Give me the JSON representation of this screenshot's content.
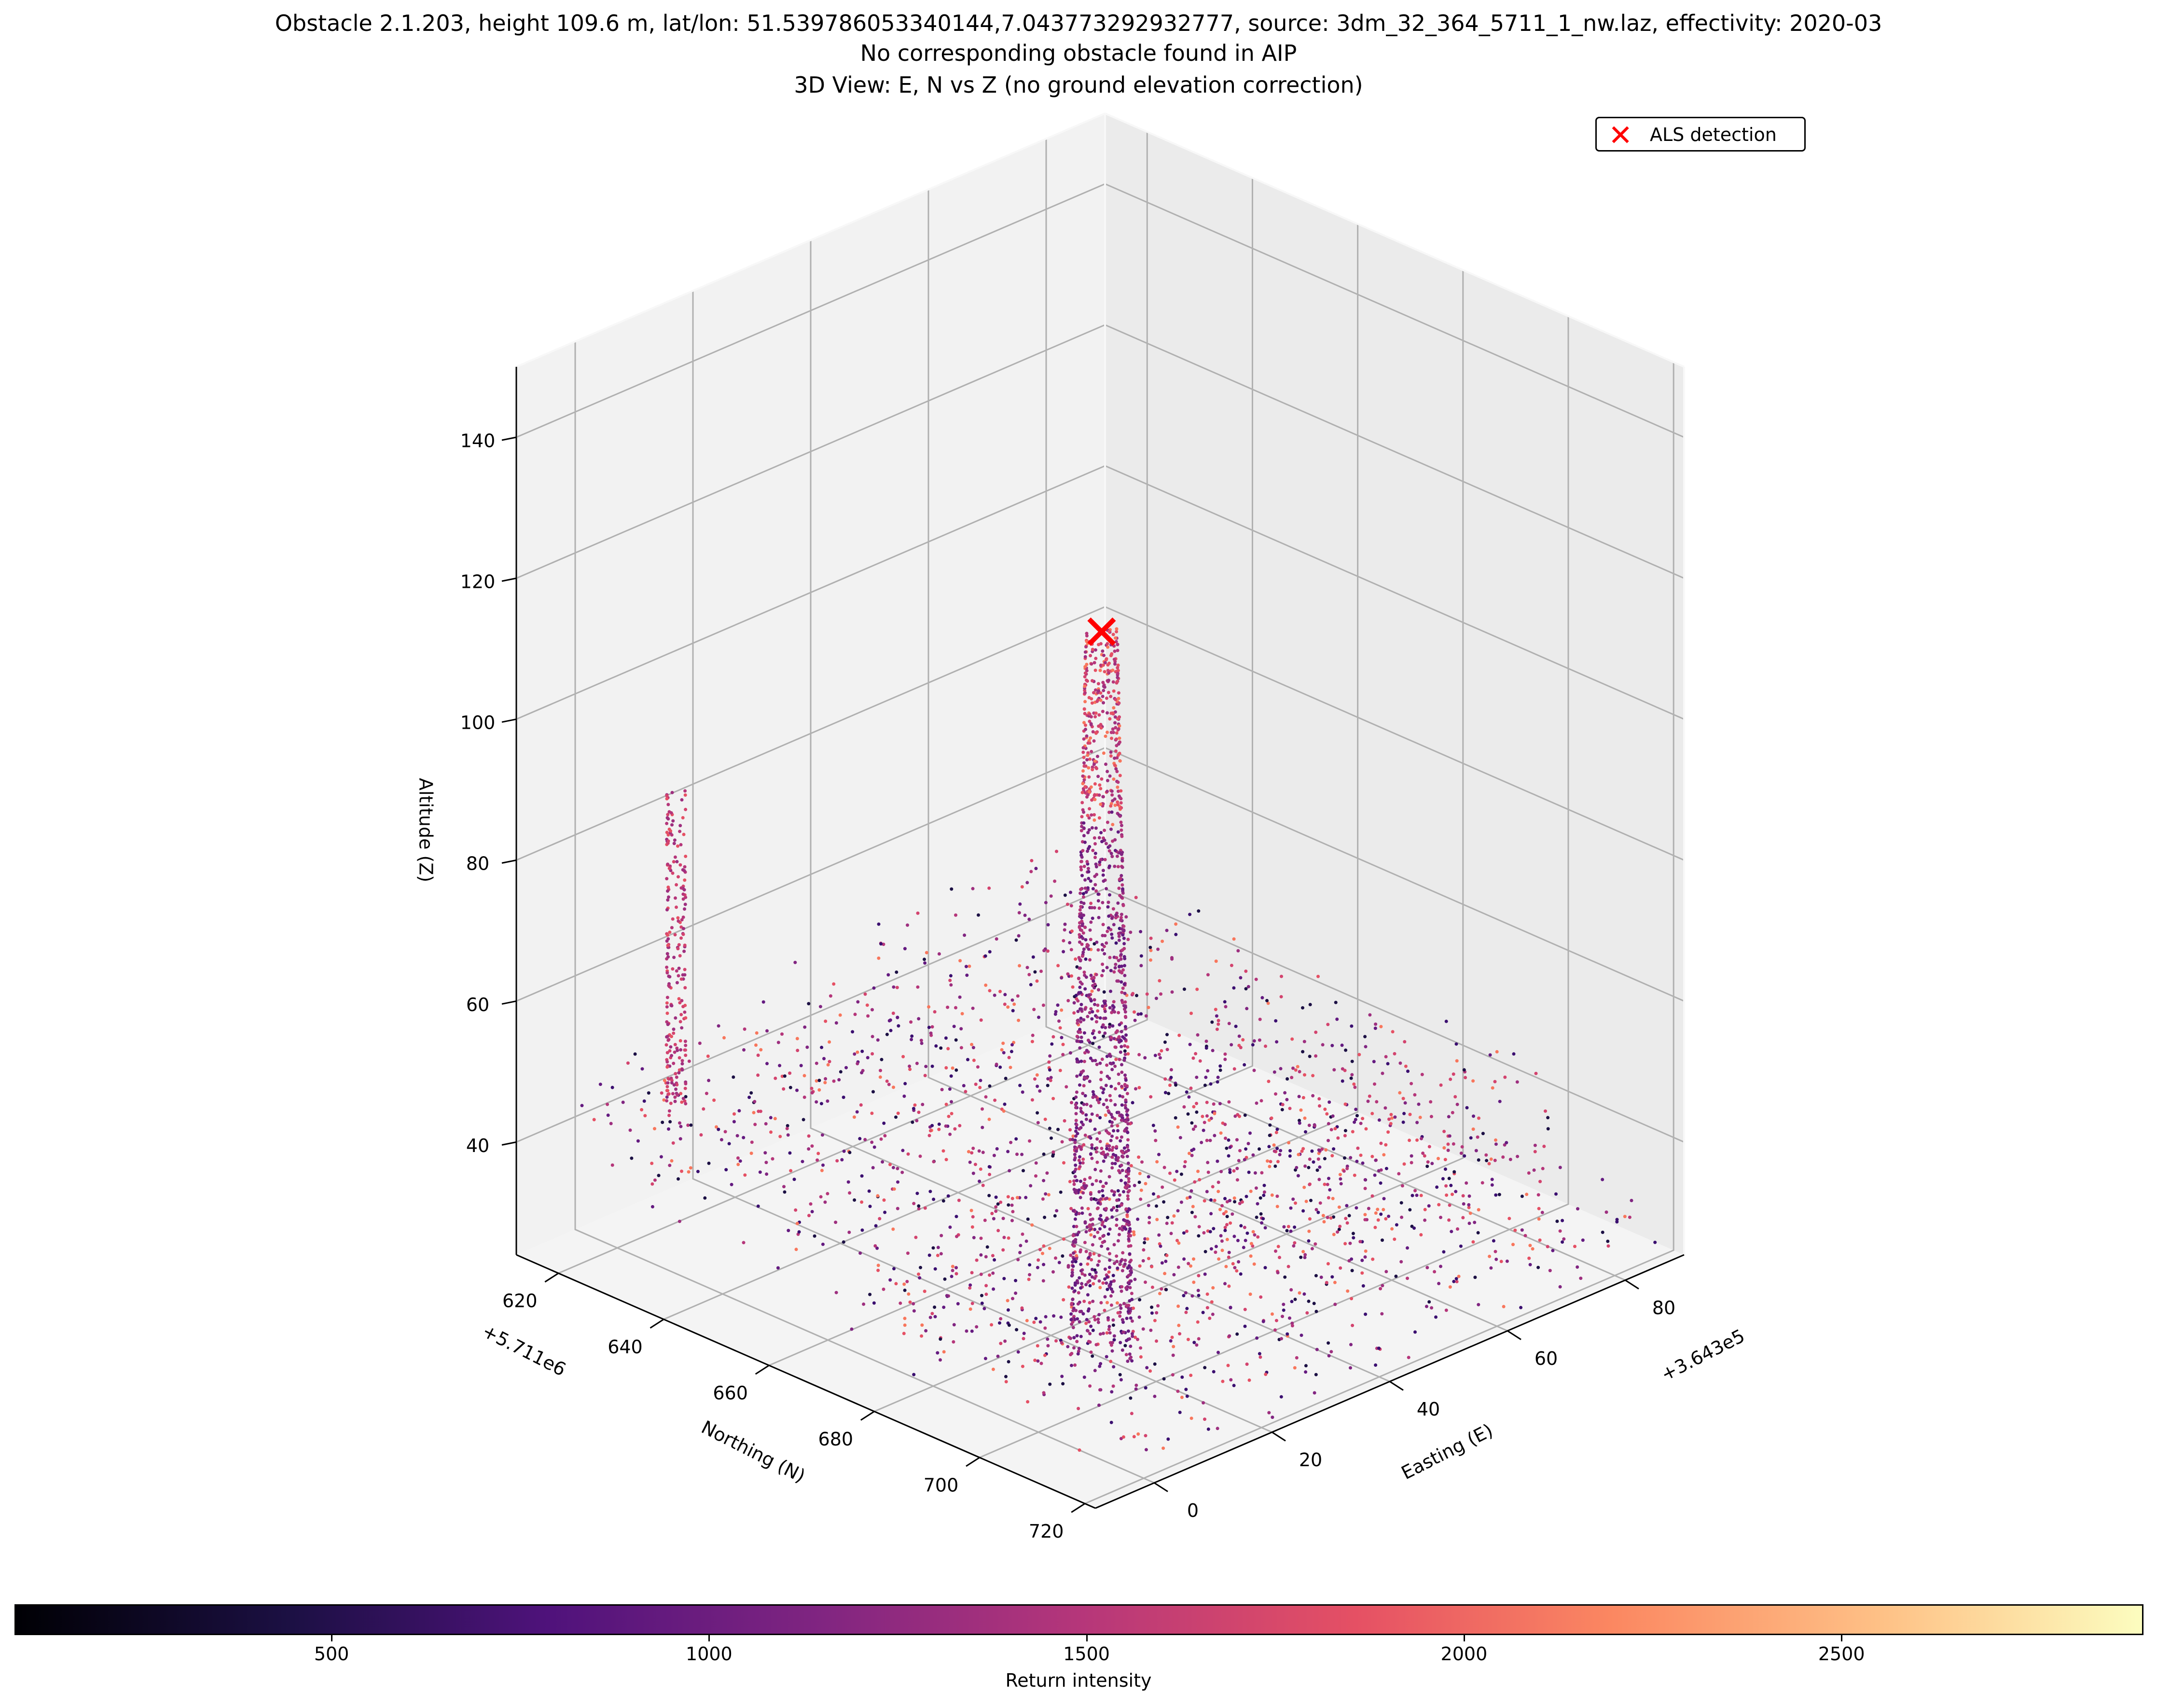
{
  "chart_data": {
    "type": "scatter",
    "projection": "3d",
    "title_lines": [
      "Obstacle 2.1.203, height 109.6 m, lat/lon: 51.539786053340144,7.043773292932777, source: 3dm_32_364_5711_1_nw.laz, effectivity: 2020-03",
      "No corresponding obstacle found in AIP",
      "3D View: E, N vs Z (no ground elevation correction)"
    ],
    "xlabel": "Easting (E)",
    "ylabel": "Northing (N)",
    "zlabel": "Altitude (Z)",
    "x_offset_label": "+3.643e5",
    "y_offset_label": "+5.711e6",
    "x_ticks": [
      "0",
      "20",
      "40",
      "60",
      "80"
    ],
    "y_ticks": [
      "620",
      "640",
      "660",
      "680",
      "700",
      "720"
    ],
    "z_ticks": [
      "40",
      "60",
      "80",
      "100",
      "120",
      "140"
    ],
    "xlim": [
      -10,
      90
    ],
    "ylim": [
      612,
      722
    ],
    "zlim": [
      24,
      150
    ],
    "grid": true,
    "legend": {
      "position": "top-right",
      "entries": [
        {
          "label": "ALS detection",
          "marker": "x",
          "color": "#ff0000"
        }
      ]
    },
    "detection_point": {
      "x": 0,
      "y": 712,
      "z": 141.5
    },
    "colorbar": {
      "label": "Return intensity",
      "cmap": "magma",
      "ticks": [
        "500",
        "1000",
        "1500",
        "2000",
        "2500"
      ],
      "range": [
        80,
        2900
      ]
    },
    "series": [
      {
        "kind": "tower",
        "x": 0,
        "y": 712,
        "z_range": [
          38,
          141.5
        ],
        "base_radius": 4
      },
      {
        "kind": "chimney",
        "x": 10,
        "y": 620,
        "z_range": [
          40,
          85
        ]
      },
      {
        "kind": "roof",
        "x_range": [
          -5,
          80
        ],
        "y_range": [
          615,
          715
        ],
        "z_range": [
          34,
          58
        ]
      },
      {
        "kind": "ground",
        "x_range": [
          0,
          90
        ],
        "y_range": [
          615,
          720
        ],
        "z_range": [
          24,
          32
        ]
      }
    ]
  },
  "colors": {
    "axis_pane": "#f2f2f2",
    "grid": "#b0b0b0",
    "detection": "#ff0000"
  }
}
